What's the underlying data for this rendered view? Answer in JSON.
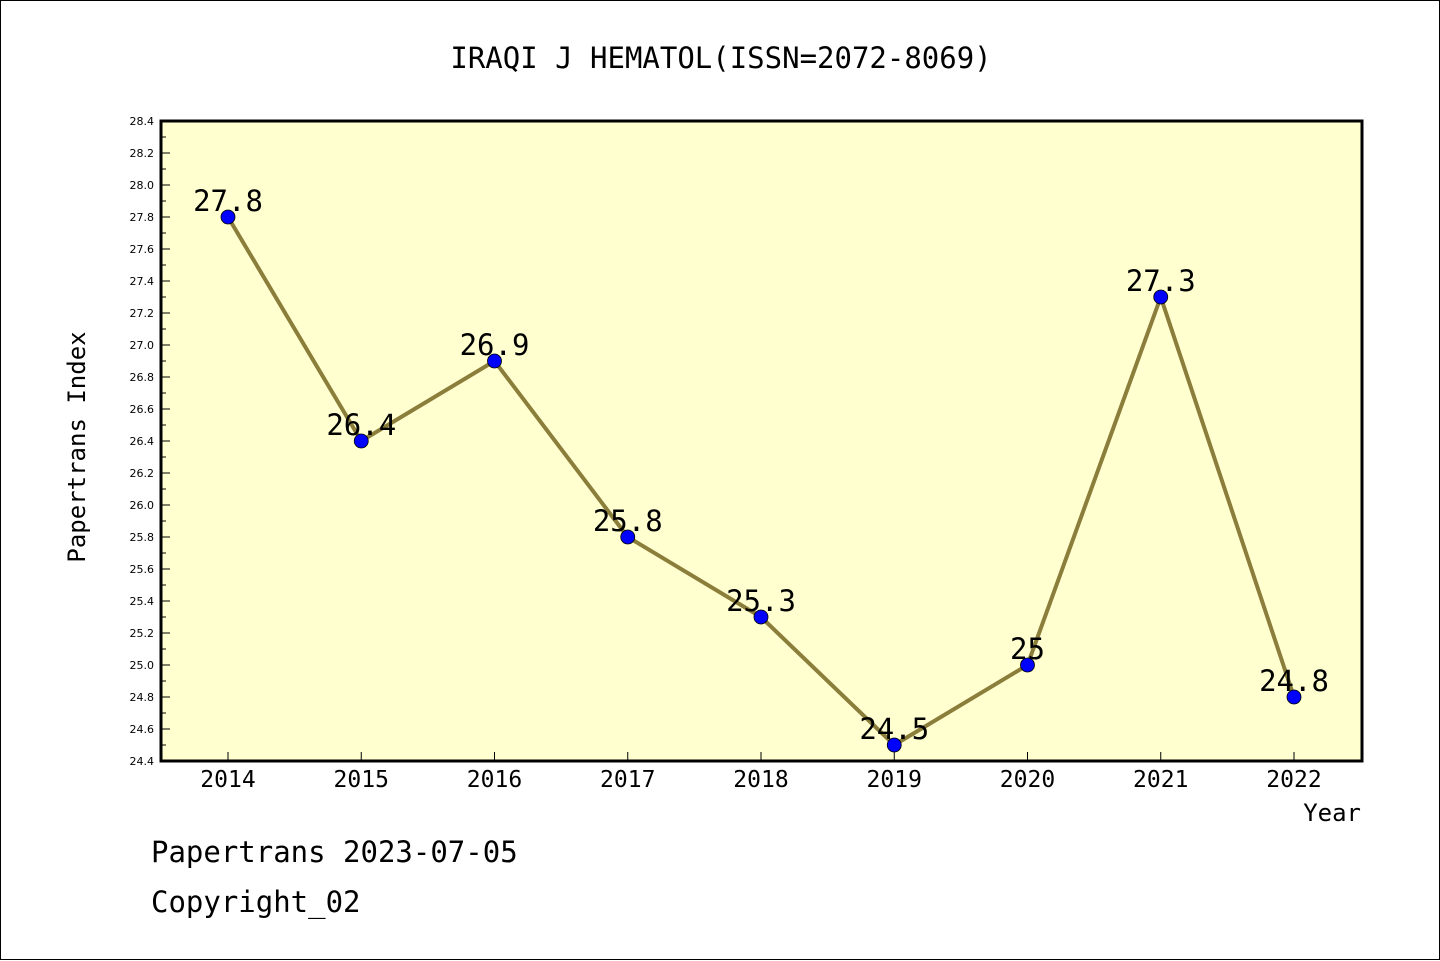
{
  "chart_data": {
    "type": "line",
    "title": "IRAQI J HEMATOL(ISSN=2072-8069)",
    "xlabel": "Year",
    "ylabel": "Papertrans Index",
    "categories": [
      "2014",
      "2015",
      "2016",
      "2017",
      "2018",
      "2019",
      "2020",
      "2021",
      "2022"
    ],
    "values": [
      27.8,
      26.4,
      26.9,
      25.8,
      25.3,
      24.5,
      25,
      27.3,
      24.8
    ],
    "data_labels": [
      "27.8",
      "26.4",
      "26.9",
      "25.8",
      "25.3",
      "24.5",
      "25",
      "27.3",
      "24.8"
    ],
    "ylim": [
      24.4,
      28.4
    ],
    "yticks": [
      "24.4",
      "24.6",
      "24.8",
      "25.0",
      "25.2",
      "25.4",
      "25.6",
      "25.8",
      "26.0",
      "26.2",
      "26.4",
      "26.6",
      "26.8",
      "27.0",
      "27.2",
      "27.4",
      "27.6",
      "27.8",
      "28.0",
      "28.2",
      "28.4"
    ],
    "grid": false,
    "colors": {
      "plot_background": "#ffffd0",
      "line": "#8b7d3a",
      "marker": "#0000ff"
    }
  },
  "footer": {
    "date_text": "Papertrans 2023-07-05",
    "copyright_text": "Copyright_02"
  }
}
